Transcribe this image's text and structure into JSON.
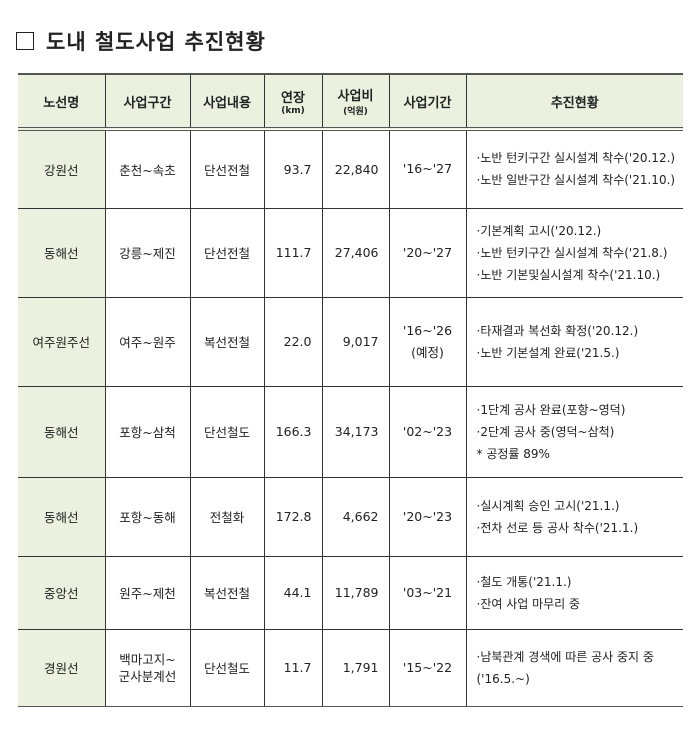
{
  "title": "도내 철도사업 추진현황",
  "headers": {
    "line": "노선명",
    "section": "사업구간",
    "content": "사업내용",
    "length": "연장",
    "length_unit": "(km)",
    "cost": "사업비",
    "cost_unit": "(억원)",
    "period": "사업기간",
    "status": "추진현황"
  },
  "rows": [
    {
      "line": "강원선",
      "section": "춘천~속초",
      "content": "단선전철",
      "length": "93.7",
      "cost": "22,840",
      "period": "'16~'27",
      "period_note": "",
      "status": [
        "·노반 턴키구간 실시설계 착수('20.12.)",
        "·노반 일반구간 실시설계  착수('21.10.)"
      ]
    },
    {
      "line": "동해선",
      "section": "강릉~제진",
      "content": "단선전철",
      "length": "111.7",
      "cost": "27,406",
      "period": "'20~'27",
      "period_note": "",
      "status": [
        "·기본계획 고시('20.12.)",
        "·노반 턴키구간 실시설계 착수('21.8.)",
        "·노반 기본및실시설계 착수('21.10.)"
      ]
    },
    {
      "line": "여주원주선",
      "section": "여주~원주",
      "content": "복선전철",
      "length": "22.0",
      "cost": "9,017",
      "period": "'16~'26",
      "period_note": "(예정)",
      "status": [
        "·타재결과 복선화 확정('20.12.)",
        "·노반 기본설계 완료('21.5.)"
      ]
    },
    {
      "line": "동해선",
      "section": "포항~삼척",
      "content": "단선철도",
      "length": "166.3",
      "cost": "34,173",
      "period": "'02~'23",
      "period_note": "",
      "status": [
        "·1단계 공사 완료(포항~영덕)",
        "·2단계 공사 중(영덕~삼척)",
        "* 공정률 89%"
      ]
    },
    {
      "line": "동해선",
      "section": "포항~동해",
      "content": "전철화",
      "length": "172.8",
      "cost": "4,662",
      "period": "'20~'23",
      "period_note": "",
      "status": [
        "·실시계획 승인 고시('21.1.)",
        "·전차 선로 등 공사 착수('21.1.)"
      ]
    },
    {
      "line": "중앙선",
      "section": "원주~제천",
      "content": "복선전철",
      "length": "44.1",
      "cost": "11,789",
      "period": "'03~'21",
      "period_note": "",
      "status": [
        "·철도 개통('21.1.)",
        "·잔여 사업 마무리 중"
      ]
    },
    {
      "line": "경원선",
      "section": "백마고지~ 군사분계선",
      "content": "단선철도",
      "length": "11.7",
      "cost": "1,791",
      "period": "'15~'22",
      "period_note": "",
      "status": [
        "·남북관계 경색에 따른 공사 중지 중('16.5.~)"
      ]
    }
  ]
}
